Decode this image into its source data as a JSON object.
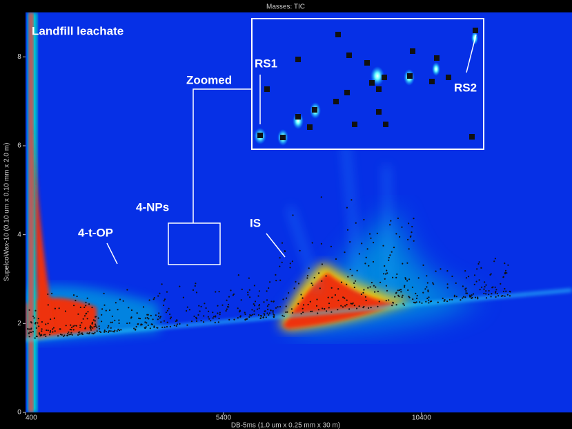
{
  "chart_data": {
    "type": "contour",
    "title": "Masses: TIC",
    "x_label": "DB-5ms (1.0 um x 0.25 mm x 30 m)",
    "y_label": "SupelcoWax-10 (0.10 um x 0.10 mm x 2.0 m)",
    "xlim": [
      400,
      14200
    ],
    "xticks": [
      400,
      5400,
      10400
    ],
    "ylim": [
      0,
      9
    ],
    "yticks": [
      0,
      2,
      4,
      6,
      8
    ],
    "annotations": {
      "sample": "Landfill leachate",
      "zoom": "Zoomed",
      "nps": "4-NPs",
      "op": "4-t-OP",
      "is": "IS",
      "rs1": "RS1",
      "rs2": "RS2"
    }
  }
}
